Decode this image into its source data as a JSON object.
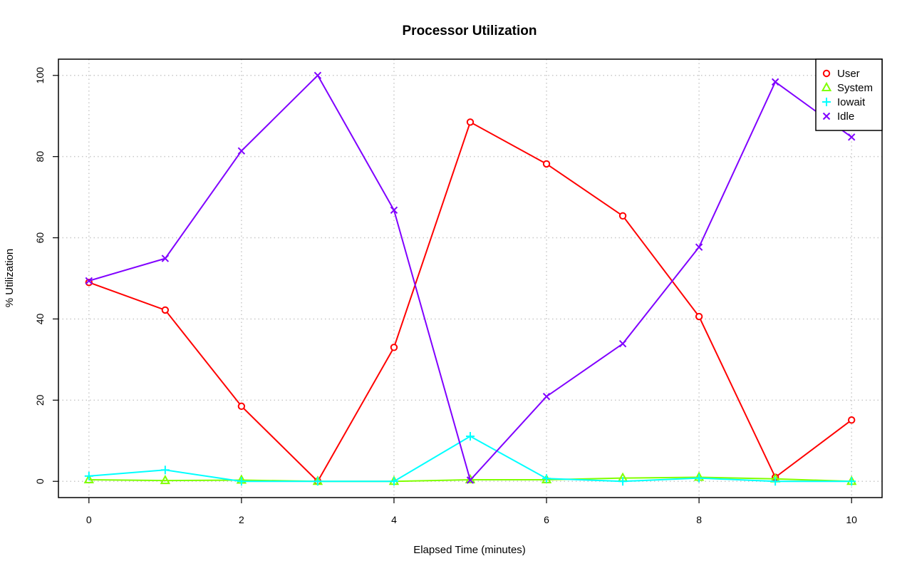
{
  "chart_data": {
    "type": "line",
    "title": "Processor Utilization",
    "xlabel": "Elapsed Time (minutes)",
    "ylabel": "% Utilization",
    "x": [
      0,
      1,
      2,
      3,
      4,
      5,
      6,
      7,
      8,
      9,
      10
    ],
    "xlim": [
      -0.4,
      10.4
    ],
    "ylim": [
      -4,
      104
    ],
    "xticks": [
      0,
      2,
      4,
      6,
      8,
      10
    ],
    "yticks": [
      0,
      20,
      40,
      60,
      80,
      100
    ],
    "grid": true,
    "legend_position": "top-right",
    "series": [
      {
        "name": "User",
        "color": "#ff0000",
        "marker": "circle",
        "values": [
          49,
          42.2,
          18.5,
          0,
          33,
          88.5,
          78.2,
          65.4,
          40.6,
          1,
          15.1
        ]
      },
      {
        "name": "System",
        "color": "#80ff00",
        "marker": "triangle",
        "values": [
          0.4,
          0.2,
          0.3,
          0,
          0,
          0.4,
          0.4,
          0.8,
          1.0,
          0.6,
          0
        ]
      },
      {
        "name": "Iowait",
        "color": "#00ffff",
        "marker": "plus",
        "values": [
          1.3,
          2.8,
          0,
          0,
          0,
          11.1,
          0.7,
          0,
          0.8,
          0,
          0
        ]
      },
      {
        "name": "Idle",
        "color": "#8000ff",
        "marker": "cross",
        "values": [
          49.4,
          54.9,
          81.4,
          100,
          66.8,
          0.3,
          20.9,
          33.9,
          57.7,
          98.4,
          84.8
        ]
      }
    ]
  }
}
